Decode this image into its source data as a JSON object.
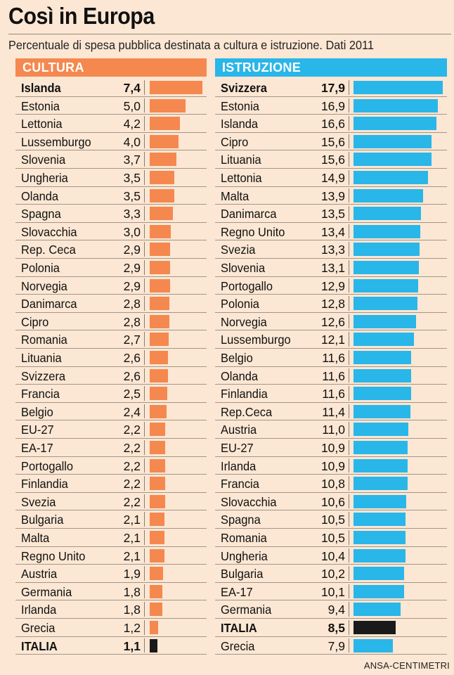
{
  "title": "Così in Europa",
  "subtitle": "Percentuale di spesa pubblica destinata a cultura e istruzione. Dati 2011",
  "source": "ANSA-CENTIMETRI",
  "colors": {
    "cultura": "#f5884f",
    "istruzione": "#29b6e9",
    "italia": "#1a1a1a",
    "background": "#fbe7d3"
  },
  "chart_data": [
    {
      "type": "bar",
      "orientation": "horizontal",
      "title": "CULTURA",
      "highlight": [
        "Islanda",
        "ITALIA"
      ],
      "categories": [
        "Islanda",
        "Estonia",
        "Lettonia",
        "Lussemburgo",
        "Slovenia",
        "Ungheria",
        "Olanda",
        "Spagna",
        "Slovacchia",
        "Rep. Ceca",
        "Polonia",
        "Norvegia",
        "Danimarca",
        "Cipro",
        "Romania",
        "Lituania",
        "Svizzera",
        "Francia",
        "Belgio",
        "EU-27",
        "EA-17",
        "Portogallo",
        "Finlandia",
        "Svezia",
        "Bulgaria",
        "Malta",
        "Regno Unito",
        "Austria",
        "Germania",
        "Irlanda",
        "Grecia",
        "ITALIA"
      ],
      "labels": [
        "7,4",
        "5,0",
        "4,2",
        "4,0",
        "3,7",
        "3,5",
        "3,5",
        "3,3",
        "3,0",
        "2,9",
        "2,9",
        "2,9",
        "2,8",
        "2,8",
        "2,7",
        "2,6",
        "2,6",
        "2,5",
        "2,4",
        "2,2",
        "2,2",
        "2,2",
        "2,2",
        "2,2",
        "2,1",
        "2,1",
        "2,1",
        "1,9",
        "1,8",
        "1,8",
        "1,2",
        "1,1"
      ],
      "values": [
        7.4,
        5.0,
        4.2,
        4.0,
        3.7,
        3.5,
        3.5,
        3.3,
        3.0,
        2.9,
        2.9,
        2.9,
        2.8,
        2.8,
        2.7,
        2.6,
        2.6,
        2.5,
        2.4,
        2.2,
        2.2,
        2.2,
        2.2,
        2.2,
        2.1,
        2.1,
        2.1,
        1.9,
        1.8,
        1.8,
        1.2,
        1.1
      ]
    },
    {
      "type": "bar",
      "orientation": "horizontal",
      "title": "ISTRUZIONE",
      "highlight": [
        "Svizzera",
        "ITALIA"
      ],
      "categories": [
        "Svizzera",
        "Estonia",
        "Islanda",
        "Cipro",
        "Lituania",
        "Lettonia",
        "Malta",
        "Danimarca",
        "Regno Unito",
        "Svezia",
        "Slovenia",
        "Portogallo",
        "Polonia",
        "Norvegia",
        "Lussemburgo",
        "Belgio",
        "Olanda",
        "Finlandia",
        "Rep.Ceca",
        "Austria",
        "EU-27",
        "Irlanda",
        "Francia",
        "Slovacchia",
        "Spagna",
        "Romania",
        "Ungheria",
        "Bulgaria",
        "EA-17",
        "Germania",
        "ITALIA",
        "Grecia"
      ],
      "labels": [
        "17,9",
        "16,9",
        "16,6",
        "15,6",
        "15,6",
        "14,9",
        "13,9",
        "13,5",
        "13,4",
        "13,3",
        "13,1",
        "12,9",
        "12,8",
        "12,6",
        "12,1",
        "11,6",
        "11,6",
        "11,6",
        "11,4",
        "11,0",
        "10,9",
        "10,9",
        "10,8",
        "10,6",
        "10,5",
        "10,5",
        "10,4",
        "10,2",
        "10,1",
        "9,4",
        "8,5",
        "7,9"
      ],
      "values": [
        17.9,
        16.9,
        16.6,
        15.6,
        15.6,
        14.9,
        13.9,
        13.5,
        13.4,
        13.3,
        13.1,
        12.9,
        12.8,
        12.6,
        12.1,
        11.6,
        11.6,
        11.6,
        11.4,
        11.0,
        10.9,
        10.9,
        10.8,
        10.6,
        10.5,
        10.5,
        10.4,
        10.2,
        10.1,
        9.4,
        8.5,
        7.9
      ]
    }
  ]
}
